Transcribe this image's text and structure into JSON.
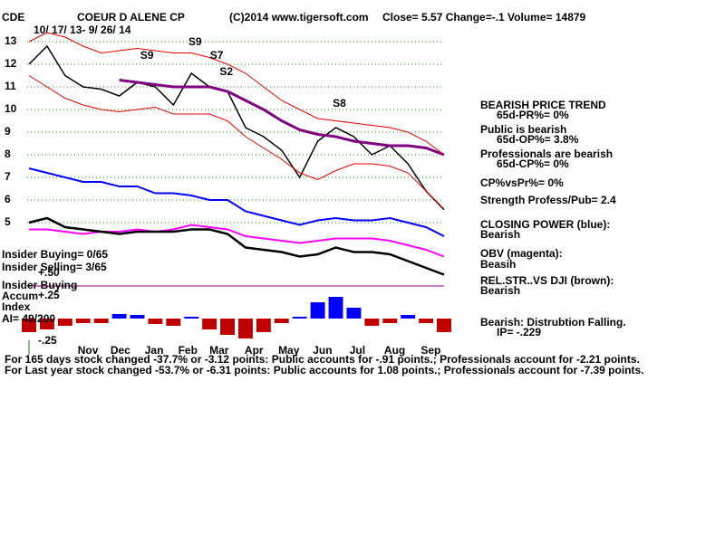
{
  "header": {
    "symbol": "CDE",
    "name": "COEUR D ALENE CP",
    "source": "(C)2014 www.tigersoft.com",
    "quote": "Close=  5.57  Change=-.1 Volume= 14879",
    "range": "10/ 17/ 13- 9/ 26/ 14"
  },
  "insider": [
    "Insider Buying= 0/65",
    "Insider Selling= 3/65",
    "Insider Buying",
    "Accum",
    "Index",
    "AI= 49/200"
  ],
  "panel": [
    "BEARISH PRICE TREND",
    "65d-PR%= 0%",
    "Public is bearish",
    "65d-OP%= 3.8%",
    "Professionals are bearish",
    "65d-CP%= 0%",
    "CP%vsPr%=  0%",
    "Strength Profess/Pub= 2.4",
    "CLOSING POWER (blue):",
    "Bearish",
    "OBV (magenta):",
    "Beasih",
    "REL.STR..VS DJI (brown):",
    "Bearish",
    "Bearish: Distrubtion Falling.",
    "IP= -.229"
  ],
  "footer": [
    "For 165 days stock changed -37.7% or -3.12 points:  Public accounts for -.91 points.;  Professionals account for -2.21 points.",
    "For Last year stock changed -53.7% or -6.31 points:  Public accounts for  1.08 points.;  Professionals account for -7.39 points."
  ],
  "chart_data": [
    {
      "type": "line",
      "x": [
        0,
        15,
        30,
        45,
        60,
        75,
        90,
        105,
        120,
        135,
        150,
        165,
        180,
        195,
        210,
        225,
        240,
        255,
        270,
        285,
        300,
        315,
        330,
        345
      ],
      "xlim": [
        0,
        345
      ],
      "ylim": [
        2.5,
        13.6
      ],
      "yticks": [
        5,
        6,
        7,
        8,
        9,
        10,
        11,
        12,
        13
      ],
      "grid": true,
      "series": [
        {
          "name": "Price",
          "color": "#000000",
          "values": [
            12.0,
            12.8,
            11.5,
            11.0,
            10.9,
            10.6,
            11.2,
            11.0,
            10.2,
            11.6,
            11.0,
            10.8,
            9.2,
            8.8,
            8.2,
            7.0,
            8.6,
            9.2,
            8.8,
            8.0,
            8.4,
            7.6,
            6.4,
            5.57
          ]
        },
        {
          "name": "Moving average",
          "color": "#800080",
          "values": [
            null,
            null,
            null,
            null,
            null,
            11.3,
            11.2,
            11.1,
            11.0,
            11.0,
            11.0,
            10.8,
            10.4,
            10.0,
            9.5,
            9.1,
            8.9,
            8.8,
            8.6,
            8.5,
            8.4,
            8.4,
            8.3,
            8.0
          ]
        },
        {
          "name": "Upper band",
          "color": "#e00000",
          "values": [
            13.0,
            13.4,
            13.2,
            12.8,
            12.5,
            12.6,
            12.7,
            12.6,
            12.5,
            12.5,
            12.3,
            12.0,
            11.6,
            11.0,
            10.4,
            10.0,
            9.6,
            9.5,
            9.4,
            9.3,
            9.2,
            9.0,
            8.6,
            8.0
          ]
        },
        {
          "name": "Lower band",
          "color": "#e00000",
          "values": [
            11.5,
            11.0,
            10.5,
            10.2,
            10.0,
            9.9,
            10.0,
            10.1,
            9.8,
            9.8,
            9.8,
            9.5,
            8.8,
            8.3,
            7.8,
            7.2,
            6.9,
            7.3,
            7.6,
            7.6,
            7.5,
            7.2,
            6.4,
            5.6
          ]
        },
        {
          "name": "Closing Power",
          "color": "#0000ff",
          "values": [
            7.4,
            7.2,
            7.0,
            6.8,
            6.8,
            6.6,
            6.6,
            6.3,
            6.3,
            6.2,
            6.0,
            6.0,
            5.5,
            5.3,
            5.1,
            4.9,
            5.1,
            5.2,
            5.1,
            5.1,
            5.2,
            5.0,
            4.8,
            4.4
          ]
        },
        {
          "name": "OBV",
          "color": "#ff00ff",
          "values": [
            4.7,
            4.7,
            4.6,
            4.5,
            4.6,
            4.6,
            4.7,
            4.6,
            4.7,
            4.9,
            4.8,
            4.7,
            4.4,
            4.3,
            4.2,
            4.1,
            4.2,
            4.3,
            4.3,
            4.3,
            4.2,
            4.0,
            3.8,
            3.5
          ]
        },
        {
          "name": "Rel. Strength",
          "color": "#000000",
          "values": [
            5.0,
            5.2,
            4.8,
            4.7,
            4.6,
            4.5,
            4.6,
            4.6,
            4.6,
            4.7,
            4.7,
            4.5,
            3.9,
            3.8,
            3.7,
            3.5,
            3.6,
            3.9,
            3.7,
            3.7,
            3.6,
            3.3,
            3.0,
            2.7
          ]
        }
      ],
      "annotations": [
        {
          "text": "S9",
          "x": 98,
          "y": 12.36
        },
        {
          "text": "S9",
          "x": 138,
          "y": 12.96
        },
        {
          "text": "S7",
          "x": 156,
          "y": 12.36
        },
        {
          "text": "S2",
          "x": 164,
          "y": 11.64
        },
        {
          "text": "S8",
          "x": 258,
          "y": 10.24
        }
      ]
    },
    {
      "type": "bar",
      "x": [
        0,
        15,
        30,
        45,
        60,
        75,
        90,
        105,
        120,
        135,
        150,
        165,
        180,
        195,
        210,
        225,
        240,
        255,
        270,
        285,
        300,
        315,
        330,
        345
      ],
      "values": [
        -0.15,
        -0.12,
        -0.08,
        -0.05,
        -0.05,
        0.05,
        0.04,
        -0.06,
        -0.08,
        0.02,
        -0.12,
        -0.18,
        -0.22,
        -0.15,
        -0.05,
        0.02,
        0.18,
        0.24,
        0.12,
        -0.08,
        -0.05,
        0.04,
        -0.05,
        -0.15
      ],
      "xlim": [
        0,
        345
      ],
      "ylim": [
        -0.3,
        0.55
      ],
      "yticks": [
        {
          "value": 0.5,
          "label": "+.50"
        },
        {
          "value": 0.25,
          "label": "+.25"
        },
        {
          "value": -0.25,
          "label": "-.25"
        }
      ],
      "xticks": [
        {
          "value": 49,
          "label": "Nov"
        },
        {
          "value": 76,
          "label": "Dec"
        },
        {
          "value": 104,
          "label": "Jan"
        },
        {
          "value": 132,
          "label": "Feb"
        },
        {
          "value": 158,
          "label": "Mar"
        },
        {
          "value": 187,
          "label": "Apr"
        },
        {
          "value": 216,
          "label": "May"
        },
        {
          "value": 244,
          "label": "Jun"
        },
        {
          "value": 273,
          "label": "Jul"
        },
        {
          "value": 304,
          "label": "Aug"
        },
        {
          "value": 334,
          "label": "Sep"
        }
      ],
      "colors": {
        "positive": "#0000ff",
        "negative": "#c00000"
      }
    }
  ]
}
